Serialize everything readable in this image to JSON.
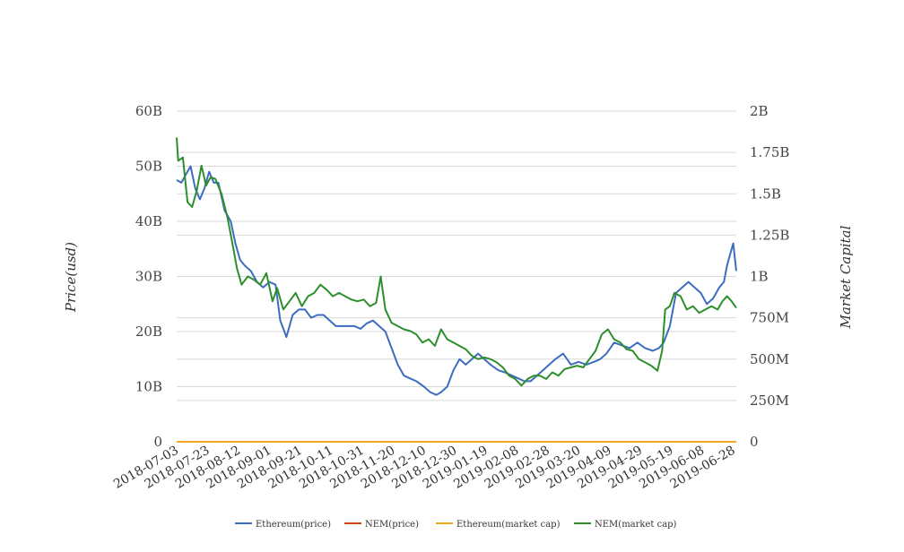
{
  "chart_data": {
    "type": "line",
    "ylabel_left": "Price(usd)",
    "ylabel_right": "Market Capital",
    "left_axis": {
      "ylim": [
        0,
        60000000000
      ],
      "ticks": [
        0,
        10000000000,
        20000000000,
        30000000000,
        40000000000,
        50000000000,
        60000000000
      ],
      "tick_labels": [
        "0",
        "10B",
        "20B",
        "30B",
        "40B",
        "50B",
        "60B"
      ]
    },
    "right_axis": {
      "ylim": [
        0,
        2000000000
      ],
      "ticks": [
        0,
        250000000,
        500000000,
        750000000,
        1000000000,
        1250000000,
        1500000000,
        1750000000,
        2000000000
      ],
      "tick_labels": [
        "0",
        "250M",
        "500M",
        "750M",
        "1B",
        "1.25B",
        "1.5B",
        "1.75B",
        "2B"
      ]
    },
    "x_range": [
      "2018-07-03",
      "2019-06-30"
    ],
    "x_tick_labels": [
      "2018-07-03",
      "2018-07-23",
      "2018-08-12",
      "2018-09-01",
      "2018-09-21",
      "2018-10-11",
      "2018-10-31",
      "2018-11-20",
      "2018-12-10",
      "2018-12-30",
      "2019-01-19",
      "2019-02-08",
      "2019-02-28",
      "2019-03-20",
      "2019-04-09",
      "2019-04-29",
      "2019-05-19",
      "2019-06-08",
      "2019-06-28"
    ],
    "grid": true,
    "legend_position": "bottom",
    "series": [
      {
        "name": "Ethereum(price)",
        "axis": "left",
        "color": "#3d6cc0",
        "x": [
          "2018-07-03",
          "2018-07-06",
          "2018-07-09",
          "2018-07-12",
          "2018-07-15",
          "2018-07-18",
          "2018-07-21",
          "2018-07-24",
          "2018-07-27",
          "2018-07-30",
          "2018-08-03",
          "2018-08-07",
          "2018-08-10",
          "2018-08-13",
          "2018-08-16",
          "2018-08-20",
          "2018-08-24",
          "2018-08-28",
          "2018-09-01",
          "2018-09-05",
          "2018-09-08",
          "2018-09-12",
          "2018-09-16",
          "2018-09-20",
          "2018-09-24",
          "2018-09-28",
          "2018-10-02",
          "2018-10-06",
          "2018-10-10",
          "2018-10-14",
          "2018-10-18",
          "2018-10-22",
          "2018-10-26",
          "2018-10-30",
          "2018-11-03",
          "2018-11-07",
          "2018-11-11",
          "2018-11-15",
          "2018-11-19",
          "2018-11-23",
          "2018-11-27",
          "2018-12-01",
          "2018-12-05",
          "2018-12-10",
          "2018-12-14",
          "2018-12-18",
          "2018-12-21",
          "2018-12-25",
          "2018-12-29",
          "2019-01-02",
          "2019-01-06",
          "2019-01-10",
          "2019-01-14",
          "2019-01-18",
          "2019-01-22",
          "2019-01-27",
          "2019-02-01",
          "2019-02-05",
          "2019-02-09",
          "2019-02-13",
          "2019-02-17",
          "2019-02-21",
          "2019-02-25",
          "2019-03-01",
          "2019-03-05",
          "2019-03-10",
          "2019-03-15",
          "2019-03-20",
          "2019-03-25",
          "2019-03-30",
          "2019-04-03",
          "2019-04-07",
          "2019-04-12",
          "2019-04-17",
          "2019-04-22",
          "2019-04-27",
          "2019-05-02",
          "2019-05-07",
          "2019-05-11",
          "2019-05-14",
          "2019-05-18",
          "2019-05-22",
          "2019-05-26",
          "2019-05-30",
          "2019-06-03",
          "2019-06-07",
          "2019-06-11",
          "2019-06-15",
          "2019-06-19",
          "2019-06-22",
          "2019-06-24",
          "2019-06-26",
          "2019-06-28",
          "2019-06-30"
        ],
        "values": [
          47.5,
          47,
          48.5,
          50,
          46,
          44,
          46,
          49,
          47,
          47,
          42,
          40,
          36,
          33,
          32,
          31,
          29,
          28,
          29,
          28.5,
          22,
          19,
          23,
          24,
          24,
          22.5,
          23,
          23,
          22,
          21,
          21,
          21,
          21,
          20.5,
          21.5,
          22,
          21,
          20,
          17,
          14,
          12,
          11.5,
          11,
          10,
          9,
          8.5,
          9,
          10,
          13,
          15,
          14,
          15,
          16,
          15,
          14,
          13,
          12.5,
          12,
          11.5,
          11,
          11,
          12,
          13,
          14,
          15,
          16,
          14,
          14.5,
          14,
          14.5,
          15,
          16,
          18,
          17.5,
          17,
          18,
          17,
          16.5,
          17,
          18,
          21,
          27,
          28,
          29,
          28,
          27,
          25,
          26,
          28,
          29,
          32,
          34,
          36,
          31
        ]
      },
      {
        "name": "NEM(price)",
        "axis": "left",
        "color": "#cc4a1c",
        "x": [
          "2018-07-03",
          "2019-06-30"
        ],
        "values": [
          2.5e-10,
          1.5e-10
        ]
      },
      {
        "name": "Ethereum(market cap)",
        "axis": "left",
        "color": "#f0a820",
        "x": [
          "2018-07-03",
          "2019-06-30"
        ],
        "values": [
          2.5e-10,
          1.5e-10
        ]
      },
      {
        "name": "NEM(market cap)",
        "axis": "right",
        "color": "#2c8f2c",
        "x": [
          "2018-07-03",
          "2018-07-04",
          "2018-07-07",
          "2018-07-10",
          "2018-07-13",
          "2018-07-16",
          "2018-07-19",
          "2018-07-22",
          "2018-07-25",
          "2018-07-28",
          "2018-08-01",
          "2018-08-05",
          "2018-08-08",
          "2018-08-11",
          "2018-08-14",
          "2018-08-18",
          "2018-08-22",
          "2018-08-26",
          "2018-08-30",
          "2018-09-03",
          "2018-09-06",
          "2018-09-10",
          "2018-09-14",
          "2018-09-18",
          "2018-09-22",
          "2018-09-26",
          "2018-09-30",
          "2018-10-04",
          "2018-10-08",
          "2018-10-12",
          "2018-10-16",
          "2018-10-20",
          "2018-10-24",
          "2018-10-28",
          "2018-11-01",
          "2018-11-05",
          "2018-11-09",
          "2018-11-12",
          "2018-11-15",
          "2018-11-19",
          "2018-11-23",
          "2018-11-27",
          "2018-12-01",
          "2018-12-05",
          "2018-12-09",
          "2018-12-13",
          "2018-12-17",
          "2018-12-21",
          "2018-12-25",
          "2018-12-29",
          "2019-01-02",
          "2019-01-06",
          "2019-01-10",
          "2019-01-14",
          "2019-01-18",
          "2019-01-22",
          "2019-01-26",
          "2019-01-30",
          "2019-02-03",
          "2019-02-07",
          "2019-02-11",
          "2019-02-15",
          "2019-02-19",
          "2019-02-23",
          "2019-02-27",
          "2019-03-03",
          "2019-03-07",
          "2019-03-11",
          "2019-03-15",
          "2019-03-19",
          "2019-03-23",
          "2019-03-27",
          "2019-03-31",
          "2019-04-04",
          "2019-04-08",
          "2019-04-12",
          "2019-04-16",
          "2019-04-20",
          "2019-04-24",
          "2019-04-28",
          "2019-05-02",
          "2019-05-06",
          "2019-05-10",
          "2019-05-13",
          "2019-05-15",
          "2019-05-18",
          "2019-05-21",
          "2019-05-25",
          "2019-05-29",
          "2019-06-02",
          "2019-06-06",
          "2019-06-10",
          "2019-06-14",
          "2019-06-18",
          "2019-06-21",
          "2019-06-24",
          "2019-06-27",
          "2019-06-30"
        ],
        "values": [
          1.84,
          1.7,
          1.72,
          1.45,
          1.42,
          1.52,
          1.67,
          1.55,
          1.6,
          1.59,
          1.5,
          1.35,
          1.2,
          1.05,
          0.95,
          1.0,
          0.98,
          0.95,
          1.02,
          0.85,
          0.93,
          0.8,
          0.85,
          0.9,
          0.82,
          0.88,
          0.9,
          0.95,
          0.92,
          0.88,
          0.9,
          0.88,
          0.86,
          0.85,
          0.86,
          0.82,
          0.84,
          1.0,
          0.8,
          0.72,
          0.7,
          0.68,
          0.67,
          0.65,
          0.6,
          0.62,
          0.58,
          0.68,
          0.62,
          0.6,
          0.58,
          0.56,
          0.52,
          0.5,
          0.51,
          0.5,
          0.48,
          0.45,
          0.4,
          0.38,
          0.34,
          0.38,
          0.4,
          0.4,
          0.38,
          0.42,
          0.4,
          0.44,
          0.45,
          0.46,
          0.45,
          0.5,
          0.55,
          0.65,
          0.68,
          0.62,
          0.6,
          0.56,
          0.55,
          0.5,
          0.48,
          0.46,
          0.43,
          0.55,
          0.8,
          0.82,
          0.9,
          0.88,
          0.8,
          0.82,
          0.78,
          0.8,
          0.82,
          0.8,
          0.85,
          0.88,
          0.85,
          0.81
        ]
      }
    ]
  }
}
